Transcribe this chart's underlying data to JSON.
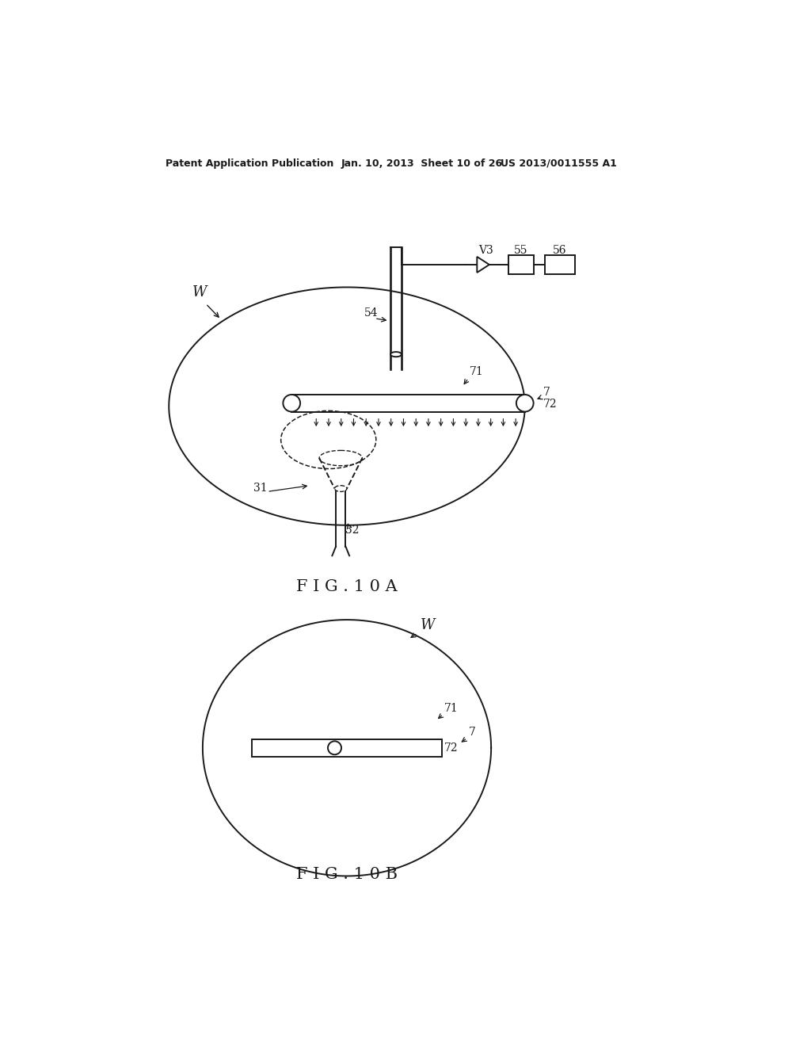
{
  "bg_color": "#ffffff",
  "line_color": "#1a1a1a",
  "header_left": "Patent Application Publication",
  "header_mid": "Jan. 10, 2013  Sheet 10 of 26",
  "header_right": "US 2013/0011555 A1",
  "fig10a_label": "FIG.10A",
  "fig10b_label": "FIG.10B"
}
